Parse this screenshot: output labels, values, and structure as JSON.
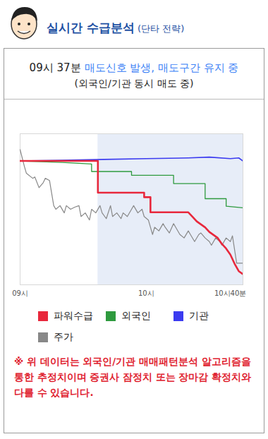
{
  "header": {
    "title": "실시간 수급분석",
    "subtitle": "(단타 전략)"
  },
  "chart_data": {
    "type": "line",
    "title": "09시 37분",
    "signal": "매도신호 발생, 매도구간 유지 중",
    "subtitle": "(외국인/기관 동시 매도 중)",
    "note": "※ 위 데이터는 외국인/기관 매매패턴분석 알고리즘을 통한 추정치이며 증권사 잠정치 또는 장마감 확정치와 다를 수 있습니다.",
    "xlim": [
      0,
      106
    ],
    "xticks": [
      {
        "value": 0,
        "label": "09시"
      },
      {
        "value": 60,
        "label": "10시"
      },
      {
        "value": 100,
        "label": "10시40분"
      }
    ],
    "ylim": [
      0,
      100
    ],
    "tick_labels": "x",
    "legend": "bottom",
    "highlight": {
      "from": 37,
      "to": 106
    },
    "series": [
      {
        "name": "파워수급",
        "color": "#e8283c",
        "x": [
          0,
          37,
          37,
          59,
          59,
          62,
          62,
          80,
          82,
          84,
          86,
          88,
          90,
          92,
          94,
          96,
          98,
          100,
          102,
          104,
          106
        ],
        "values": [
          82,
          82,
          61,
          61,
          58,
          58,
          48,
          48,
          45,
          42,
          40,
          38,
          35,
          33,
          31,
          27,
          24,
          20,
          14,
          9,
          7
        ]
      },
      {
        "name": "외국인",
        "color": "#2e9a3e",
        "x": [
          0,
          10,
          20,
          34,
          34,
          53,
          53,
          73,
          73,
          88,
          88,
          98,
          98,
          106
        ],
        "values": [
          82,
          81.5,
          81,
          80,
          75,
          75,
          72.5,
          72.5,
          67,
          67,
          57,
          57,
          52,
          51
        ]
      },
      {
        "name": "기관",
        "color": "#3b3bf0",
        "x": [
          0,
          20,
          40,
          60,
          80,
          90,
          100,
          104,
          106
        ],
        "values": [
          82,
          82.5,
          83,
          83.5,
          84,
          84.5,
          83.5,
          84,
          82
        ]
      },
      {
        "name": "주가",
        "color": "#888888",
        "x": [
          0,
          2,
          3,
          6,
          7,
          9,
          11,
          12,
          14,
          16,
          17,
          19,
          21,
          22,
          24,
          26,
          28,
          29,
          31,
          33,
          34,
          36,
          38,
          39,
          41,
          43,
          44,
          46,
          48,
          49,
          51,
          53,
          54,
          56,
          58,
          59,
          61,
          63,
          64,
          66,
          68,
          69,
          71,
          73,
          74,
          76,
          78,
          80,
          81,
          83,
          85,
          86,
          88,
          90,
          91,
          93,
          95,
          96,
          98,
          100,
          101,
          103,
          106
        ],
        "values": [
          89.5,
          78.6,
          73.8,
          70.5,
          71.4,
          64.3,
          67.6,
          70.5,
          69,
          52.4,
          50,
          52.4,
          47.6,
          52.4,
          50,
          51.4,
          52.4,
          45.2,
          47.6,
          42.9,
          50,
          47.6,
          52.4,
          47.6,
          43.8,
          52.4,
          45.2,
          47.6,
          43.8,
          47.6,
          45.2,
          50,
          52.4,
          47.6,
          50,
          45.2,
          42.9,
          33.3,
          38.1,
          35.7,
          40.5,
          38.1,
          34.3,
          40.5,
          38.1,
          33.3,
          31,
          35.7,
          33.3,
          28.6,
          33.3,
          34.3,
          31,
          28.6,
          26.2,
          31,
          28.6,
          26.2,
          31,
          28.6,
          32.4,
          14.3,
          14.3
        ]
      }
    ]
  }
}
